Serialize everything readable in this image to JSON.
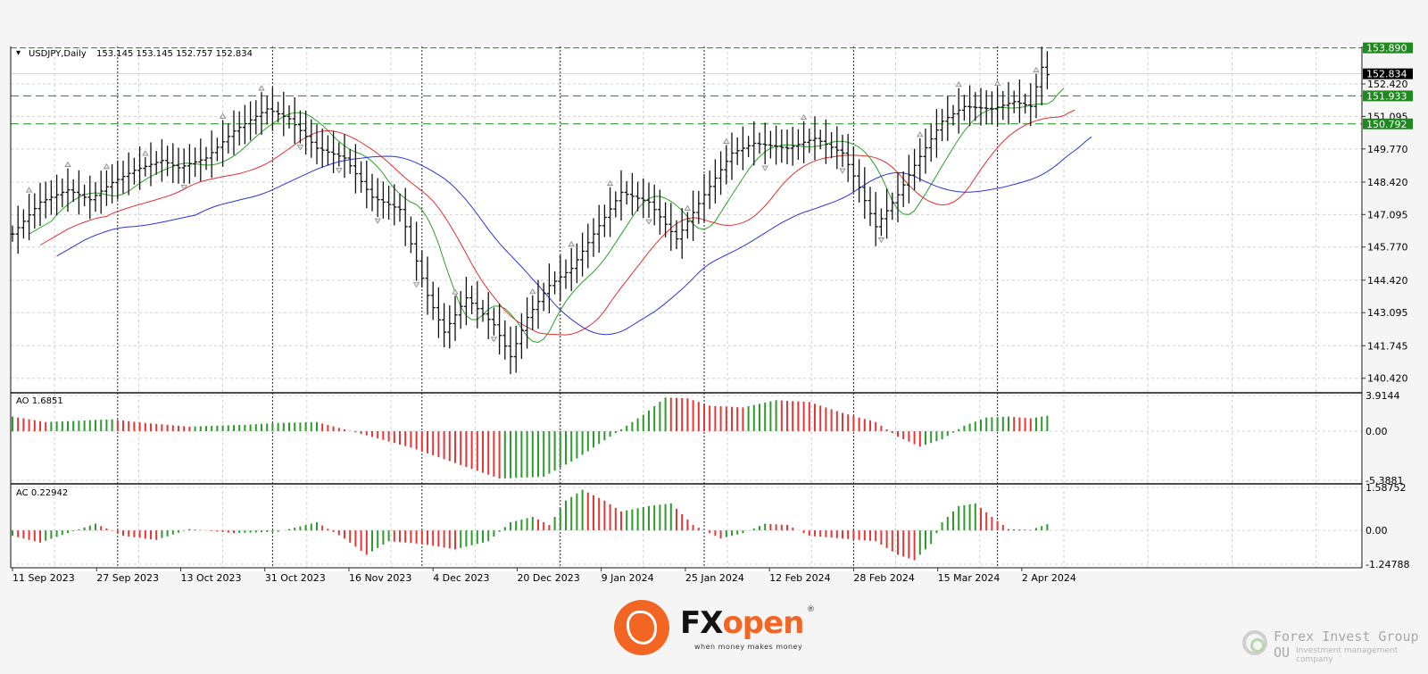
{
  "chart_data": [
    {
      "type": "ohlc",
      "symbol_header": "USDJPY,Daily",
      "ohlc_header": "153.145 153.145 152.757 152.834",
      "y_ticks": [
        "152.420",
        "151.095",
        "149.770",
        "148.420",
        "147.095",
        "145.770",
        "144.420",
        "143.095",
        "141.745",
        "140.420"
      ],
      "y_tick_values": [
        152.42,
        151.095,
        149.77,
        148.42,
        147.095,
        145.77,
        144.42,
        143.095,
        141.745,
        140.42
      ],
      "ylim": [
        139.9,
        153.95
      ],
      "current_price_label": "152.834",
      "current_price": 152.834,
      "levels": [
        {
          "label": "153.890",
          "value": 153.89
        },
        {
          "label": "151.933",
          "value": 151.933
        },
        {
          "label": "150.792",
          "value": 150.792
        }
      ],
      "x_labels": [
        "11 Sep 2023",
        "27 Sep 2023",
        "13 Oct 2023",
        "31 Oct 2023",
        "16 Nov 2023",
        "4 Dec 2023",
        "20 Dec 2023",
        "9 Jan 2024",
        "25 Jan 2024",
        "12 Feb 2024",
        "28 Feb 2024",
        "15 Mar 2024",
        "2 Apr 2024"
      ],
      "close_anchors": [
        {
          "bar": 0,
          "value": 146.3
        },
        {
          "bar": 5,
          "value": 147.6
        },
        {
          "bar": 10,
          "value": 148.1
        },
        {
          "bar": 14,
          "value": 147.7
        },
        {
          "bar": 18,
          "value": 148.4
        },
        {
          "bar": 22,
          "value": 148.9
        },
        {
          "bar": 27,
          "value": 149.3
        },
        {
          "bar": 30,
          "value": 149.0
        },
        {
          "bar": 35,
          "value": 149.4
        },
        {
          "bar": 40,
          "value": 150.5
        },
        {
          "bar": 46,
          "value": 151.4
        },
        {
          "bar": 50,
          "value": 151.0
        },
        {
          "bar": 55,
          "value": 149.8
        },
        {
          "bar": 60,
          "value": 149.4
        },
        {
          "bar": 65,
          "value": 147.8
        },
        {
          "bar": 70,
          "value": 147.3
        },
        {
          "bar": 75,
          "value": 143.8
        },
        {
          "bar": 78,
          "value": 142.3
        },
        {
          "bar": 82,
          "value": 143.7
        },
        {
          "bar": 87,
          "value": 142.6
        },
        {
          "bar": 90,
          "value": 141.3
        },
        {
          "bar": 93,
          "value": 142.9
        },
        {
          "bar": 97,
          "value": 144.2
        },
        {
          "bar": 101,
          "value": 144.9
        },
        {
          "bar": 105,
          "value": 146.3
        },
        {
          "bar": 110,
          "value": 148.0
        },
        {
          "bar": 115,
          "value": 147.6
        },
        {
          "bar": 120,
          "value": 146.1
        },
        {
          "bar": 125,
          "value": 147.9
        },
        {
          "bar": 130,
          "value": 149.6
        },
        {
          "bar": 134,
          "value": 150.0
        },
        {
          "bar": 140,
          "value": 149.8
        },
        {
          "bar": 145,
          "value": 150.2
        },
        {
          "bar": 150,
          "value": 149.6
        },
        {
          "bar": 153,
          "value": 148.2
        },
        {
          "bar": 156,
          "value": 146.6
        },
        {
          "bar": 160,
          "value": 147.9
        },
        {
          "bar": 163,
          "value": 149.1
        },
        {
          "bar": 168,
          "value": 150.9
        },
        {
          "bar": 172,
          "value": 151.5
        },
        {
          "bar": 177,
          "value": 151.4
        },
        {
          "bar": 181,
          "value": 151.7
        },
        {
          "bar": 184,
          "value": 151.5
        },
        {
          "bar": 186,
          "value": 153.1
        },
        {
          "bar": 187,
          "value": 152.8
        }
      ],
      "bar_count": 188,
      "moving_averages": [
        {
          "color": "#2ca02c"
        },
        {
          "color": "#e03030"
        },
        {
          "color": "#2b35d8"
        }
      ]
    },
    {
      "type": "histogram",
      "label": "AO 1.6851",
      "y_ticks": [
        "3.9144",
        "0.00",
        "-5.3881"
      ],
      "ylim": [
        -5.3881,
        3.9144
      ],
      "anchors": [
        {
          "bar": 0,
          "value": 1.6
        },
        {
          "bar": 6,
          "value": 1.0
        },
        {
          "bar": 18,
          "value": 1.3
        },
        {
          "bar": 24,
          "value": 0.9
        },
        {
          "bar": 32,
          "value": 0.5
        },
        {
          "bar": 42,
          "value": 0.7
        },
        {
          "bar": 48,
          "value": 0.9
        },
        {
          "bar": 55,
          "value": 1.0
        },
        {
          "bar": 60,
          "value": 0.2
        },
        {
          "bar": 66,
          "value": -0.8
        },
        {
          "bar": 72,
          "value": -1.8
        },
        {
          "bar": 80,
          "value": -3.5
        },
        {
          "bar": 88,
          "value": -5.2
        },
        {
          "bar": 96,
          "value": -5.0
        },
        {
          "bar": 102,
          "value": -3.0
        },
        {
          "bar": 108,
          "value": -0.6
        },
        {
          "bar": 114,
          "value": 1.8
        },
        {
          "bar": 118,
          "value": 3.7
        },
        {
          "bar": 122,
          "value": 3.6
        },
        {
          "bar": 126,
          "value": 2.8
        },
        {
          "bar": 132,
          "value": 2.6
        },
        {
          "bar": 138,
          "value": 3.4
        },
        {
          "bar": 144,
          "value": 3.2
        },
        {
          "bar": 150,
          "value": 2.0
        },
        {
          "bar": 156,
          "value": 1.0
        },
        {
          "bar": 160,
          "value": -0.6
        },
        {
          "bar": 164,
          "value": -1.7
        },
        {
          "bar": 168,
          "value": -0.9
        },
        {
          "bar": 172,
          "value": 0.6
        },
        {
          "bar": 176,
          "value": 1.5
        },
        {
          "bar": 180,
          "value": 1.6
        },
        {
          "bar": 184,
          "value": 1.4
        },
        {
          "bar": 187,
          "value": 1.69
        }
      ],
      "up_color": "#2c9a2c",
      "down_color": "#e53535"
    },
    {
      "type": "histogram",
      "label": "AC 0.22942",
      "y_ticks": [
        "1.58752",
        "0.00",
        "-1.24788"
      ],
      "ylim": [
        -1.24788,
        1.58752
      ],
      "anchors": [
        {
          "bar": 0,
          "value": -0.2
        },
        {
          "bar": 5,
          "value": -0.45
        },
        {
          "bar": 10,
          "value": -0.1
        },
        {
          "bar": 15,
          "value": 0.25
        },
        {
          "bar": 20,
          "value": -0.2
        },
        {
          "bar": 26,
          "value": -0.35
        },
        {
          "bar": 32,
          "value": 0.05
        },
        {
          "bar": 40,
          "value": -0.1
        },
        {
          "bar": 48,
          "value": -0.05
        },
        {
          "bar": 55,
          "value": 0.3
        },
        {
          "bar": 60,
          "value": -0.3
        },
        {
          "bar": 64,
          "value": -0.9
        },
        {
          "bar": 68,
          "value": -0.4
        },
        {
          "bar": 74,
          "value": -0.5
        },
        {
          "bar": 80,
          "value": -0.7
        },
        {
          "bar": 86,
          "value": -0.4
        },
        {
          "bar": 90,
          "value": 0.3
        },
        {
          "bar": 94,
          "value": 0.5
        },
        {
          "bar": 97,
          "value": 0.2
        },
        {
          "bar": 100,
          "value": 1.1
        },
        {
          "bar": 103,
          "value": 1.5
        },
        {
          "bar": 107,
          "value": 1.1
        },
        {
          "bar": 110,
          "value": 0.7
        },
        {
          "bar": 115,
          "value": 0.9
        },
        {
          "bar": 119,
          "value": 1.0
        },
        {
          "bar": 123,
          "value": 0.2
        },
        {
          "bar": 128,
          "value": -0.3
        },
        {
          "bar": 132,
          "value": -0.1
        },
        {
          "bar": 136,
          "value": 0.25
        },
        {
          "bar": 140,
          "value": 0.2
        },
        {
          "bar": 144,
          "value": -0.2
        },
        {
          "bar": 150,
          "value": -0.3
        },
        {
          "bar": 156,
          "value": -0.4
        },
        {
          "bar": 160,
          "value": -0.9
        },
        {
          "bar": 163,
          "value": -1.1
        },
        {
          "bar": 166,
          "value": -0.5
        },
        {
          "bar": 168,
          "value": 0.3
        },
        {
          "bar": 171,
          "value": 0.9
        },
        {
          "bar": 174,
          "value": 1.0
        },
        {
          "bar": 177,
          "value": 0.5
        },
        {
          "bar": 180,
          "value": 0.05
        },
        {
          "bar": 184,
          "value": 0.02
        },
        {
          "bar": 187,
          "value": 0.23
        }
      ],
      "up_color": "#2c9a2c",
      "down_color": "#e53535"
    }
  ],
  "footer": {
    "fx_name_a": "FX",
    "fx_name_b": "open",
    "fx_reg": "®",
    "fx_tagline": "when money makes money",
    "publisher_name": "Forex Invest Group OU",
    "publisher_sub": "Investment management company"
  },
  "colors": {
    "level_green": "#1d8a1d",
    "price_label_bg": "#000000",
    "grid": "#c8c8c8",
    "separator": "#111111"
  }
}
